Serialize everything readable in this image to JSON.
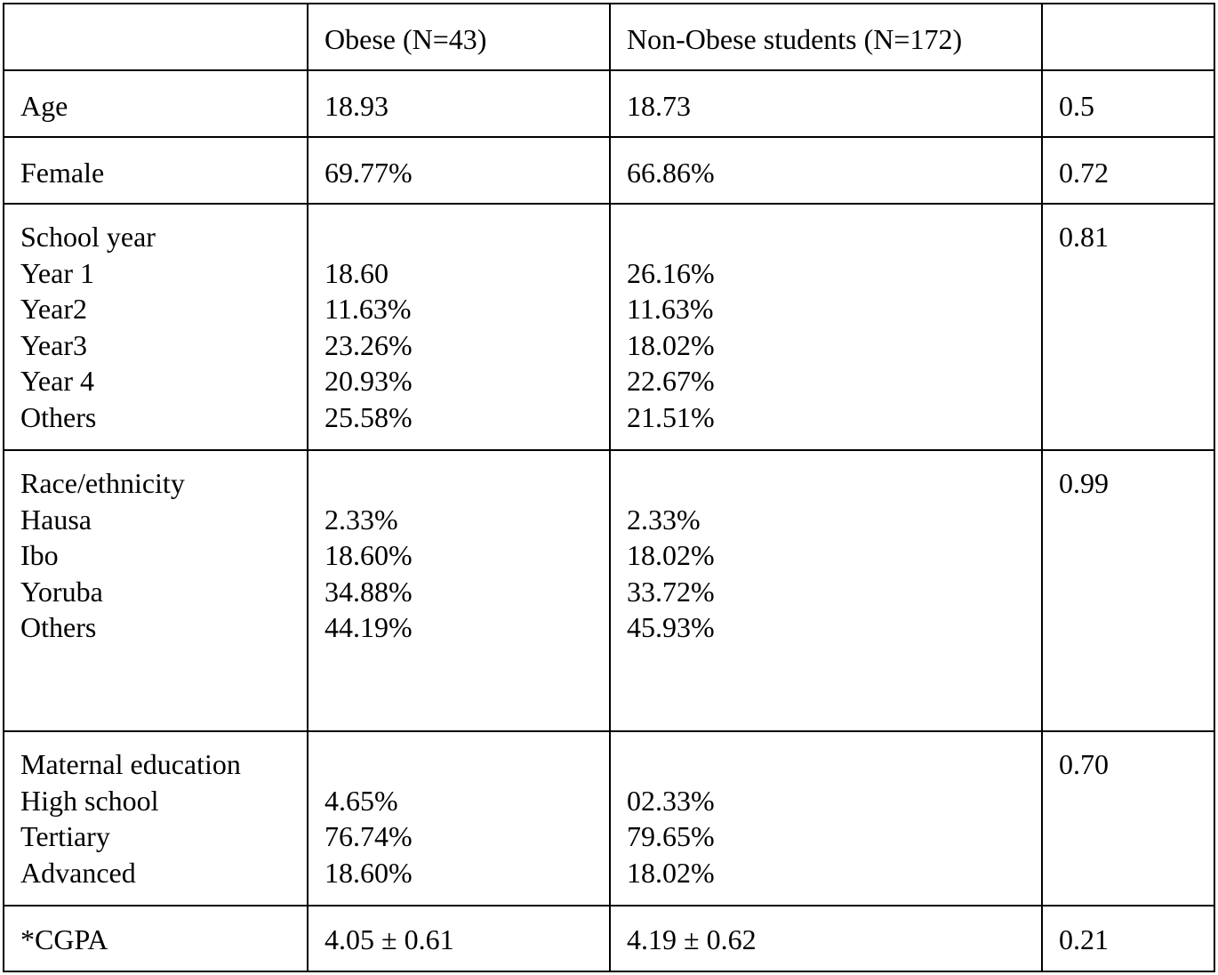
{
  "table": {
    "header": {
      "col0": "",
      "col1": "Obese (N=43)",
      "col2": "Non-Obese students (N=172)",
      "col3": ""
    },
    "rows": [
      {
        "label": "Age",
        "obese": "18.93",
        "non_obese": "18.73",
        "p": "0.5"
      },
      {
        "label": "Female",
        "obese": "69.77%",
        "non_obese": "66.86%",
        "p": "0.72"
      },
      {
        "label": "School year",
        "p": "0.81",
        "sub": [
          {
            "label": "Year 1",
            "obese": "18.60",
            "non_obese": "26.16%"
          },
          {
            "label": "Year2",
            "obese": "11.63%",
            "non_obese": "11.63%"
          },
          {
            "label": "Year3",
            "obese": "23.26%",
            "non_obese": "18.02%"
          },
          {
            "label": "Year 4",
            "obese": "20.93%",
            "non_obese": "22.67%"
          },
          {
            "label": "Others",
            "obese": "25.58%",
            "non_obese": "21.51%"
          }
        ]
      },
      {
        "label": "Race/ethnicity",
        "p": "0.99",
        "sub": [
          {
            "label": "Hausa",
            "obese": "2.33%",
            "non_obese": "2.33%"
          },
          {
            "label": "Ibo",
            "obese": "18.60%",
            "non_obese": "18.02%"
          },
          {
            "label": "Yoruba",
            "obese": "34.88%",
            "non_obese": "33.72%"
          },
          {
            "label": "Others",
            "obese": "44.19%",
            "non_obese": "45.93%"
          }
        ]
      },
      {
        "label": "Maternal education",
        "p": "0.70",
        "sub": [
          {
            "label": "High school",
            "obese": "4.65%",
            "non_obese": "02.33%"
          },
          {
            "label": "Tertiary",
            "obese": "76.74%",
            "non_obese": "79.65%"
          },
          {
            "label": "Advanced",
            "obese": "18.60%",
            "non_obese": "18.02%"
          }
        ]
      },
      {
        "label": "*CGPA",
        "obese": "4.05 ± 0.61",
        "non_obese": "4.19 ± 0.62",
        "p": "0.21"
      }
    ]
  }
}
